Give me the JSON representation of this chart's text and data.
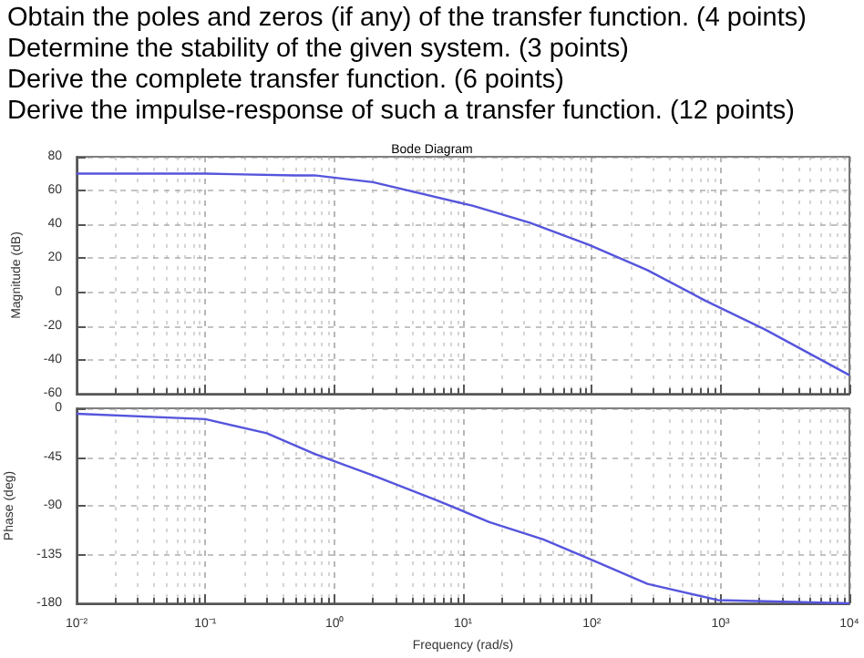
{
  "chart_data": [
    {
      "type": "line",
      "title": "Bode Diagram",
      "ylabel": "Magnitude (dB)",
      "annotations": [
        "Obtain the poles and zeros (if any) of the transfer function. (4 points)",
        "Determine the stability of the given system. (3 points)",
        "Derive the complete transfer function. (6 points)",
        "Derive the impulse-response of such a transfer function. (12 points)"
      ],
      "x": [
        0.01,
        0.1,
        0.5,
        0.7,
        2,
        12,
        33,
        95,
        270,
        760,
        2200,
        10000
      ],
      "values": [
        70,
        70,
        69,
        69,
        65,
        51,
        41,
        28,
        13,
        -5,
        -22,
        -49
      ],
      "color": "#5555dd",
      "xlim": [
        0.01,
        10000
      ],
      "ylim": [
        -60,
        80
      ],
      "xticks": [
        0.01,
        0.1,
        1,
        10,
        100,
        1000,
        10000
      ],
      "yticks": [
        80,
        60,
        40,
        20,
        0,
        -20,
        -40,
        -60
      ],
      "grid": true,
      "tick_labels": "y",
      "log": "x"
    },
    {
      "type": "line",
      "ylabel": "Phase (deg)",
      "xlabel": "Frequency (rad/s)",
      "x": [
        0.01,
        0.1,
        0.3,
        0.7,
        2,
        6.3,
        16,
        42,
        105,
        270,
        950,
        10000
      ],
      "values": [
        -5,
        -10,
        -23,
        -42,
        -62,
        -85,
        -105,
        -121,
        -141,
        -162,
        -177,
        -180
      ],
      "color": "#5555dd",
      "xlim": [
        0.01,
        10000
      ],
      "ylim": [
        -180,
        0
      ],
      "xticks": [
        {
          "value": 0.01,
          "label": "10⁻²"
        },
        {
          "value": 0.1,
          "label": "10⁻¹"
        },
        {
          "value": 1,
          "label": "10⁰"
        },
        {
          "value": 10,
          "label": "10¹"
        },
        {
          "value": 100,
          "label": "10²"
        },
        {
          "value": 1000,
          "label": "10³"
        },
        {
          "value": 10000,
          "label": "10⁴"
        }
      ],
      "yticks": [
        0,
        -45,
        -90,
        -135,
        -180
      ],
      "grid": true,
      "log": "x"
    }
  ]
}
